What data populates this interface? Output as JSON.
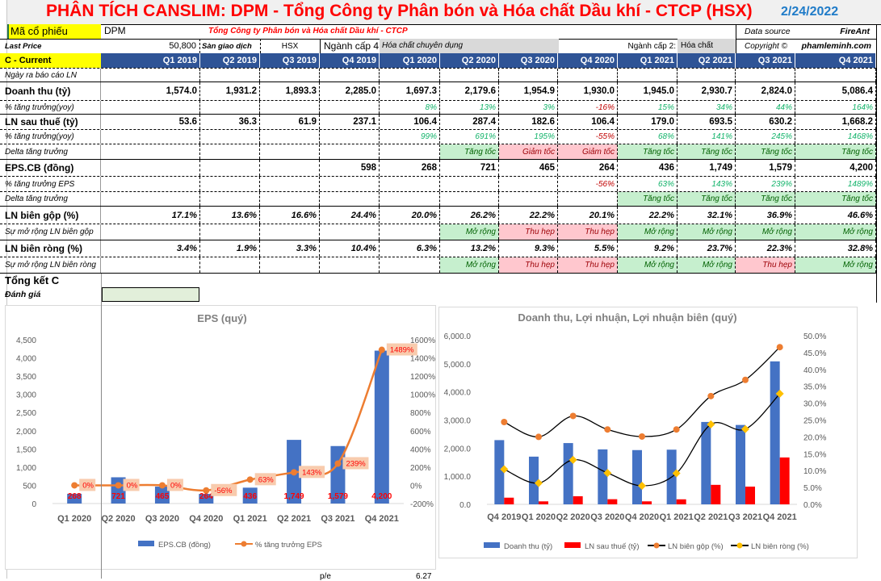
{
  "title": "PHÂN TÍCH CANSLIM: DPM - Tổng Công ty Phân bón và Hóa chất Dầu khí - CTCP (HSX)",
  "date": "2/24/2022",
  "info": {
    "ticker_label": "Mã cổ phiếu",
    "ticker": "DPM",
    "company": "Tổng Công ty Phân bón và Hóa chất Dầu khí - CTCP",
    "data_source_label": "Data source",
    "data_source": "FireAnt",
    "last_price_label": "Last Price",
    "last_price": "50,800",
    "exchange_label": "Sàn giao dịch",
    "exchange": "HSX",
    "industry4_label": "Ngành cấp 4",
    "industry4": "Hóa chất chuyên dụng",
    "industry2_label": "Ngành cấp 2:",
    "industry2": "Hóa chất",
    "copyright_label": "Copyright ©",
    "copyright": "phamleminh.com"
  },
  "colors": {
    "header": "#2f5496",
    "highlight": "#ffff00",
    "positive_bg": "#c6efce",
    "negative_bg": "#ffc7ce",
    "title": "#ff0000",
    "date": "#1f7bc8"
  },
  "table": {
    "header_label": "C - Current",
    "quarters": [
      "Q1 2019",
      "Q2 2019",
      "Q3 2019",
      "Q4 2019",
      "Q1 2020",
      "Q2 2020",
      "Q3 2020",
      "Q4 2020",
      "Q1 2021",
      "Q2 2021",
      "Q3 2021",
      "Q4 2021"
    ],
    "rows": [
      {
        "label": "Ngày ra báo cáo LN",
        "style": "note",
        "values": [
          "",
          "",
          "",
          "",
          "",
          "",
          "",
          "",
          "",
          "",
          "",
          ""
        ]
      },
      {
        "label": "Doanh thu (tỷ)",
        "style": "main",
        "values": [
          "1,574.0",
          "1,931.2",
          "1,893.3",
          "2,285.0",
          "1,697.3",
          "2,179.6",
          "1,954.9",
          "1,930.0",
          "1,945.0",
          "2,930.7",
          "2,824.0",
          "5,086.4"
        ]
      },
      {
        "label": "% tăng trưởng(yoy)",
        "style": "note",
        "values": [
          "",
          "",
          "",
          "",
          "8%",
          "13%",
          "3%",
          "-16%",
          "15%",
          "34%",
          "44%",
          "164%"
        ]
      },
      {
        "label": "LN sau thuế (tỷ)",
        "style": "main",
        "values": [
          "53.6",
          "36.3",
          "61.9",
          "237.1",
          "106.4",
          "287.4",
          "182.6",
          "106.4",
          "179.0",
          "693.5",
          "630.2",
          "1,668.2"
        ]
      },
      {
        "label": "% tăng trưởng(yoy)",
        "style": "note",
        "values": [
          "",
          "",
          "",
          "",
          "99%",
          "691%",
          "195%",
          "-55%",
          "68%",
          "141%",
          "245%",
          "1468%"
        ]
      },
      {
        "label": "Delta tăng trưởng",
        "style": "note",
        "values": [
          "",
          "",
          "",
          "",
          "",
          "Tăng tốc",
          "Giảm tốc",
          "Giảm tốc",
          "Tăng tốc",
          "Tăng tốc",
          "Tăng tốc",
          "Tăng tốc"
        ]
      },
      {
        "label": "EPS.CB (đồng)",
        "style": "main",
        "values": [
          "",
          "",
          "",
          "598",
          "268",
          "721",
          "465",
          "264",
          "436",
          "1,749",
          "1,579",
          "4,200"
        ]
      },
      {
        "label": "% tăng trưởng EPS",
        "style": "note",
        "values": [
          "",
          "",
          "",
          "",
          "",
          "",
          "",
          "-56%",
          "63%",
          "143%",
          "239%",
          "1489%"
        ]
      },
      {
        "label": "Delta tăng trưởng",
        "style": "note",
        "values": [
          "",
          "",
          "",
          "",
          "",
          "",
          "",
          "",
          "Tăng tốc",
          "Tăng tốc",
          "Tăng tốc",
          "Tăng tốc"
        ]
      },
      {
        "label": "LN biên gộp (%)",
        "style": "bi",
        "values": [
          "17.1%",
          "13.6%",
          "16.6%",
          "24.4%",
          "20.0%",
          "26.2%",
          "22.2%",
          "20.1%",
          "22.2%",
          "32.1%",
          "36.9%",
          "46.6%"
        ]
      },
      {
        "label": "Sự mở rộng LN biên gộp",
        "style": "note",
        "values": [
          "",
          "",
          "",
          "",
          "",
          "Mở rộng",
          "Thu hẹp",
          "Thu hẹp",
          "Mở rộng",
          "Mở rộng",
          "Mở rộng",
          "Mở rộng"
        ]
      },
      {
        "label": "LN biên ròng (%)",
        "style": "bi",
        "values": [
          "3.4%",
          "1.9%",
          "3.3%",
          "10.4%",
          "6.3%",
          "13.2%",
          "9.3%",
          "5.5%",
          "9.2%",
          "23.7%",
          "22.3%",
          "32.8%"
        ]
      },
      {
        "label": "Sự mở rộng LN biên ròng",
        "style": "note",
        "values": [
          "",
          "",
          "",
          "",
          "",
          "Mở rộng",
          "Thu hẹp",
          "Thu hẹp",
          "Mở rộng",
          "Mở rộng",
          "Thu hẹp",
          "Mở rộng"
        ]
      }
    ],
    "summary_label": "Tổng kết C",
    "rating_label": "Đánh giá"
  },
  "footer": {
    "pe_label": "p/e",
    "pe_value": "6.27"
  },
  "chart_data": [
    {
      "type": "bar+line",
      "title": "EPS  (quý)",
      "categories": [
        "Q1 2020",
        "Q2 2020",
        "Q3 2020",
        "Q4 2020",
        "Q1 2021",
        "Q2 2021",
        "Q3 2021",
        "Q4 2021"
      ],
      "series": [
        {
          "name": "EPS.CB (đồng)",
          "type": "bar",
          "axis": "left",
          "color": "#4472c4",
          "values": [
            268,
            721,
            465,
            264,
            436,
            1749,
            1579,
            4200
          ],
          "labels": [
            "268",
            "721",
            "465",
            "264",
            "436",
            "1,749",
            "1,579",
            "4,200"
          ]
        },
        {
          "name": "% tăng trưởng EPS",
          "type": "line",
          "axis": "right",
          "color": "#ed7d31",
          "values": [
            0,
            0,
            0,
            -56,
            63,
            143,
            239,
            1489
          ],
          "labels": [
            "0%",
            "0%",
            "0%",
            "-56%",
            "63%",
            "143%",
            "239%",
            "1489%"
          ]
        }
      ],
      "left_axis": {
        "min": 0,
        "max": 4500,
        "step": 500,
        "ticks": [
          "0",
          "500",
          "1,000",
          "1,500",
          "2,000",
          "2,500",
          "3,000",
          "3,500",
          "4,000",
          "4,500"
        ]
      },
      "right_axis": {
        "min": -200,
        "max": 1600,
        "step": 200,
        "ticks": [
          "-200%",
          "0%",
          "200%",
          "400%",
          "600%",
          "800%",
          "1000%",
          "1200%",
          "1400%",
          "1600%"
        ]
      },
      "legend": "bottom",
      "grid": false
    },
    {
      "type": "bar+line",
      "title": "Doanh thu, Lợi nhuận, Lợi nhuận biên (quý)",
      "categories": [
        "Q4 2019",
        "Q1 2020",
        "Q2 2020",
        "Q3 2020",
        "Q4 2020",
        "Q1 2021",
        "Q2 2021",
        "Q3 2021",
        "Q4 2021"
      ],
      "series": [
        {
          "name": "Doanh thu (tỷ)",
          "type": "bar",
          "axis": "left",
          "color": "#4472c4",
          "values": [
            2285.0,
            1697.3,
            2179.6,
            1954.9,
            1930.0,
            1945.0,
            2930.7,
            2824.0,
            5086.4
          ]
        },
        {
          "name": "LN sau thuế (tỷ)",
          "type": "bar",
          "axis": "left",
          "color": "#ff0000",
          "values": [
            237.1,
            106.4,
            287.4,
            182.6,
            106.4,
            179.0,
            693.5,
            630.2,
            1668.2
          ]
        },
        {
          "name": "LN biên gộp (%)",
          "type": "line",
          "axis": "right",
          "color": "#ed7d31",
          "values": [
            24.4,
            20.0,
            26.2,
            22.2,
            20.1,
            22.2,
            32.1,
            36.9,
            46.6
          ]
        },
        {
          "name": "LN biên ròng (%)",
          "type": "line",
          "axis": "right",
          "color": "#ffc000",
          "values": [
            10.4,
            6.3,
            13.2,
            9.3,
            5.5,
            9.2,
            23.7,
            22.3,
            32.8
          ]
        }
      ],
      "left_axis": {
        "min": 0,
        "max": 6000,
        "step": 1000,
        "ticks": [
          "0.0",
          "1,000.0",
          "2,000.0",
          "3,000.0",
          "4,000.0",
          "5,000.0",
          "6,000.0"
        ]
      },
      "right_axis": {
        "min": 0,
        "max": 50,
        "step": 5,
        "ticks": [
          "0.0%",
          "5.0%",
          "10.0%",
          "15.0%",
          "20.0%",
          "25.0%",
          "30.0%",
          "35.0%",
          "40.0%",
          "45.0%",
          "50.0%"
        ]
      },
      "legend": "bottom",
      "grid": false
    }
  ]
}
